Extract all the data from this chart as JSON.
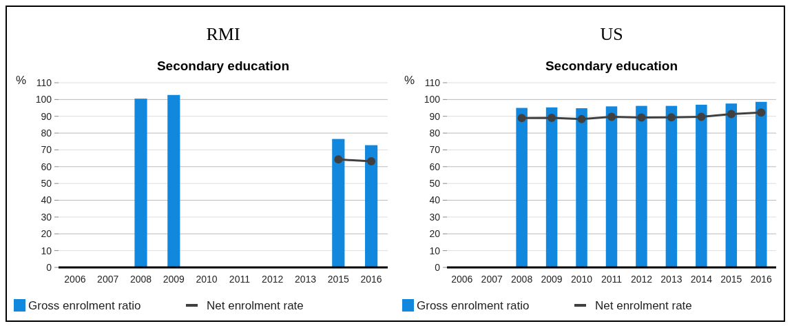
{
  "chart_data": [
    {
      "type": "bar",
      "title": "RMI",
      "subtitle": "Secondary education",
      "ylabel": "%",
      "categories": [
        "2006",
        "2007",
        "2008",
        "2009",
        "2010",
        "2011",
        "2012",
        "2013",
        "2015",
        "2016"
      ],
      "ylim": [
        0,
        110
      ],
      "yticks": [
        0,
        10,
        20,
        30,
        40,
        50,
        60,
        70,
        80,
        90,
        100,
        110
      ],
      "grid": "y",
      "legend": "bottom",
      "series": [
        {
          "name": "Gross enrolment ratio",
          "type": "bar",
          "color": "#1188dd",
          "values": [
            null,
            null,
            100.5,
            102.7,
            null,
            null,
            null,
            null,
            76.5,
            72.8
          ]
        },
        {
          "name": "Net enrolment rate",
          "type": "line",
          "color": "#404040",
          "marker": "circle",
          "values": [
            null,
            null,
            null,
            null,
            null,
            null,
            null,
            null,
            64.3,
            63.2
          ]
        }
      ]
    },
    {
      "type": "bar",
      "title": "US",
      "subtitle": "Secondary education",
      "ylabel": "%",
      "categories": [
        "2006",
        "2007",
        "2008",
        "2009",
        "2010",
        "2011",
        "2012",
        "2013",
        "2014",
        "2015",
        "2016"
      ],
      "ylim": [
        0,
        110
      ],
      "yticks": [
        0,
        10,
        20,
        30,
        40,
        50,
        60,
        70,
        80,
        90,
        100,
        110
      ],
      "grid": "y",
      "legend": "bottom",
      "series": [
        {
          "name": "Gross enrolment ratio",
          "type": "bar",
          "color": "#1188dd",
          "values": [
            null,
            null,
            95.0,
            95.3,
            94.8,
            95.9,
            96.2,
            96.2,
            96.9,
            97.6,
            98.6
          ]
        },
        {
          "name": "Net enrolment rate",
          "type": "line",
          "color": "#404040",
          "marker": "circle",
          "values": [
            null,
            null,
            89.0,
            89.1,
            88.3,
            89.7,
            89.3,
            89.4,
            89.7,
            91.3,
            92.2
          ]
        }
      ]
    }
  ]
}
